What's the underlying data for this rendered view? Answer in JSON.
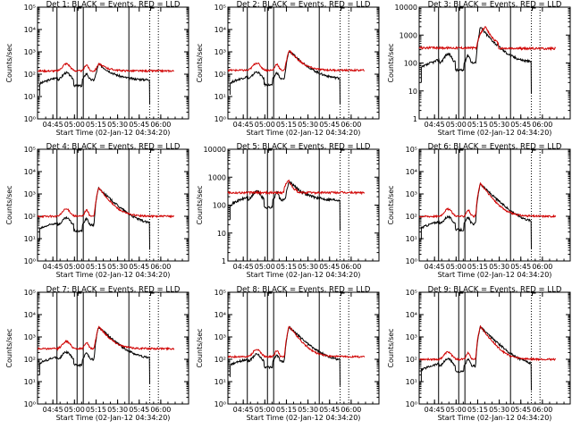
{
  "chart_data": [
    {
      "type": "line",
      "title": "Det 1: BLACK = Events, RED = LLD",
      "xlabel": "Start Time (02-Jan-12 04:34:20)",
      "ylabel": "Counts/sec",
      "ylog": true,
      "ylim": [
        1,
        100000
      ],
      "yticks": [
        "10⁰",
        "10¹",
        "10²",
        "10³",
        "10⁴",
        "10⁵"
      ],
      "xticks": [
        "04:45",
        "05:00",
        "05:15",
        "05:30",
        "05:45",
        "06:00"
      ],
      "series": [
        {
          "name": "Events",
          "color": "#000000",
          "base": 55,
          "peak": 280
        },
        {
          "name": "LLD",
          "color": "#d00000",
          "base": 140,
          "peak": 300
        }
      ],
      "profile": "A"
    },
    {
      "type": "line",
      "title": "Det 2: BLACK = Events, RED = LLD",
      "xlabel": "Start Time (02-Jan-12 04:34:20)",
      "ylabel": "Counts/sec",
      "ylog": true,
      "ylim": [
        1,
        100000
      ],
      "yticks": [
        "10⁰",
        "10¹",
        "10²",
        "10³",
        "10⁴",
        "10⁵"
      ],
      "xticks": [
        "04:45",
        "05:00",
        "05:15",
        "05:30",
        "05:45",
        "06:00"
      ],
      "series": [
        {
          "name": "Events",
          "color": "#000000",
          "base": 60,
          "peak": 1100
        },
        {
          "name": "LLD",
          "color": "#d00000",
          "base": 150,
          "peak": 1200
        }
      ],
      "profile": "A"
    },
    {
      "type": "line",
      "title": "Det 3: BLACK = Events, RED = LLD",
      "xlabel": "Start Time (02-Jan-12 04:34:20)",
      "ylabel": "Counts/sec",
      "ylog": true,
      "ylim": [
        1,
        10000
      ],
      "yticks": [
        "1",
        "10",
        "100",
        "1000",
        "10000"
      ],
      "xticks": [
        "04:45",
        "05:00",
        "05:15",
        "05:30",
        "05:45",
        "06:00"
      ],
      "series": [
        {
          "name": "Events",
          "color": "#000000",
          "base": 100,
          "peak": 1900
        },
        {
          "name": "LLD",
          "color": "#d00000",
          "base": 350,
          "peak": 2000
        }
      ],
      "profile": "B"
    },
    {
      "type": "line",
      "title": "Det 4: BLACK = Events, RED = LLD",
      "xlabel": "Start Time (02-Jan-12 04:34:20)",
      "ylabel": "Counts/sec",
      "ylog": true,
      "ylim": [
        1,
        100000
      ],
      "yticks": [
        "10⁰",
        "10¹",
        "10²",
        "10³",
        "10⁴",
        "10⁵"
      ],
      "xticks": [
        "04:45",
        "05:00",
        "05:15",
        "05:30",
        "05:45",
        "06:00"
      ],
      "series": [
        {
          "name": "Events",
          "color": "#000000",
          "base": 40,
          "peak": 1800
        },
        {
          "name": "LLD",
          "color": "#d00000",
          "base": 100,
          "peak": 1900
        }
      ],
      "profile": "A"
    },
    {
      "type": "line",
      "title": "Det 5: BLACK = Events, RED = LLD",
      "xlabel": "Start Time (02-Jan-12 04:34:20)",
      "ylabel": "Counts/sec",
      "ylog": true,
      "ylim": [
        1,
        10000
      ],
      "yticks": [
        "1",
        "10",
        "100",
        "1000",
        "10000"
      ],
      "xticks": [
        "04:45",
        "05:00",
        "05:15",
        "05:30",
        "05:45",
        "06:00"
      ],
      "series": [
        {
          "name": "Events",
          "color": "#000000",
          "base": 150,
          "peak": 700
        },
        {
          "name": "LLD",
          "color": "#d00000",
          "base": 280,
          "peak": 800
        }
      ],
      "profile": "C"
    },
    {
      "type": "line",
      "title": "Det 6: BLACK = Events, RED = LLD",
      "xlabel": "Start Time (02-Jan-12 04:34:20)",
      "ylabel": "Counts/sec",
      "ylog": true,
      "ylim": [
        1,
        100000
      ],
      "yticks": [
        "10⁰",
        "10¹",
        "10²",
        "10³",
        "10⁴",
        "10⁵"
      ],
      "xticks": [
        "04:45",
        "05:00",
        "05:15",
        "05:30",
        "05:45",
        "06:00"
      ],
      "series": [
        {
          "name": "Events",
          "color": "#000000",
          "base": 45,
          "peak": 2800
        },
        {
          "name": "LLD",
          "color": "#d00000",
          "base": 100,
          "peak": 3000
        }
      ],
      "profile": "A"
    },
    {
      "type": "line",
      "title": "Det 7: BLACK = Events, RED = LLD",
      "xlabel": "Start Time (02-Jan-12 04:34:20)",
      "ylabel": "Counts/sec",
      "ylog": true,
      "ylim": [
        1,
        100000
      ],
      "yticks": [
        "10⁰",
        "10¹",
        "10²",
        "10³",
        "10⁴",
        "10⁵"
      ],
      "xticks": [
        "04:45",
        "05:00",
        "05:15",
        "05:30",
        "05:45",
        "06:00"
      ],
      "series": [
        {
          "name": "Events",
          "color": "#000000",
          "base": 100,
          "peak": 2800
        },
        {
          "name": "LLD",
          "color": "#d00000",
          "base": 300,
          "peak": 3000
        }
      ],
      "profile": "A"
    },
    {
      "type": "line",
      "title": "Det 8: BLACK = Events, RED = LLD",
      "xlabel": "Start Time (02-Jan-12 04:34:20)",
      "ylabel": "Counts/sec",
      "ylog": true,
      "ylim": [
        1,
        100000
      ],
      "yticks": [
        "10⁰",
        "10¹",
        "10²",
        "10³",
        "10⁴",
        "10⁵"
      ],
      "xticks": [
        "04:45",
        "05:00",
        "05:15",
        "05:30",
        "05:45",
        "06:00"
      ],
      "series": [
        {
          "name": "Events",
          "color": "#000000",
          "base": 80,
          "peak": 2800
        },
        {
          "name": "LLD",
          "color": "#d00000",
          "base": 130,
          "peak": 3000
        }
      ],
      "profile": "A"
    },
    {
      "type": "line",
      "title": "Det 9: BLACK = Events, RED = LLD",
      "xlabel": "Start Time (02-Jan-12 04:34:20)",
      "ylabel": "Counts/sec",
      "ylog": true,
      "ylim": [
        1,
        100000
      ],
      "yticks": [
        "10⁰",
        "10¹",
        "10²",
        "10³",
        "10⁴",
        "10⁵"
      ],
      "xticks": [
        "04:45",
        "05:00",
        "05:15",
        "05:30",
        "05:45",
        "06:00"
      ],
      "series": [
        {
          "name": "Events",
          "color": "#000000",
          "base": 50,
          "peak": 2800
        },
        {
          "name": "LLD",
          "color": "#d00000",
          "base": 100,
          "peak": 3000
        }
      ],
      "profile": "A"
    }
  ]
}
